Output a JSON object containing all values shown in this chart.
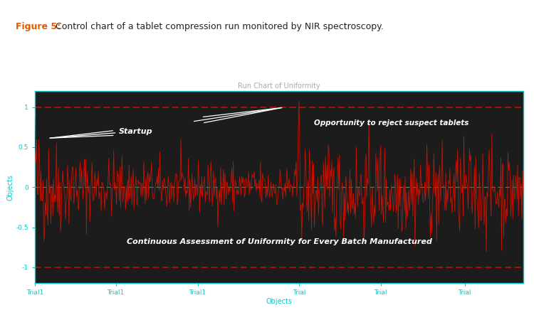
{
  "title": "Run Chart of Uniformity",
  "xlabel": "Objects",
  "ylabel": "Objects",
  "figure_label": "Figure 5:",
  "figure_caption": " Control chart of a tablet compression run monitored by NIR spectroscopy.",
  "ylim": [
    -1.2,
    1.2
  ],
  "yticks": [
    -1,
    -0.5,
    0,
    0.5,
    1
  ],
  "bg_color": "#1c1c1c",
  "fig_bg": "#ffffff",
  "line_color": "#cc1100",
  "zero_line_color": "#00bb33",
  "control_limit_color": "#cc1100",
  "axis_color": "#00cccc",
  "text_color": "#ffffff",
  "title_color": "#aaaaaa",
  "n_points": 700,
  "seed": 42,
  "transition_point": 380,
  "spike_point": 378,
  "spike2_point": 495,
  "xtick_labels": [
    "Trial1",
    "Trial1",
    "Trial1",
    "Trial",
    "Trial",
    "Trial"
  ],
  "xtick_positions": [
    0,
    116,
    233,
    378,
    495,
    615
  ],
  "annotation_startup": "Startup",
  "annotation_opportunity": "Opportunity to reject suspect tablets",
  "annotation_continuous": "Continuous Assessment of Uniformity for Every Batch Manufactured"
}
